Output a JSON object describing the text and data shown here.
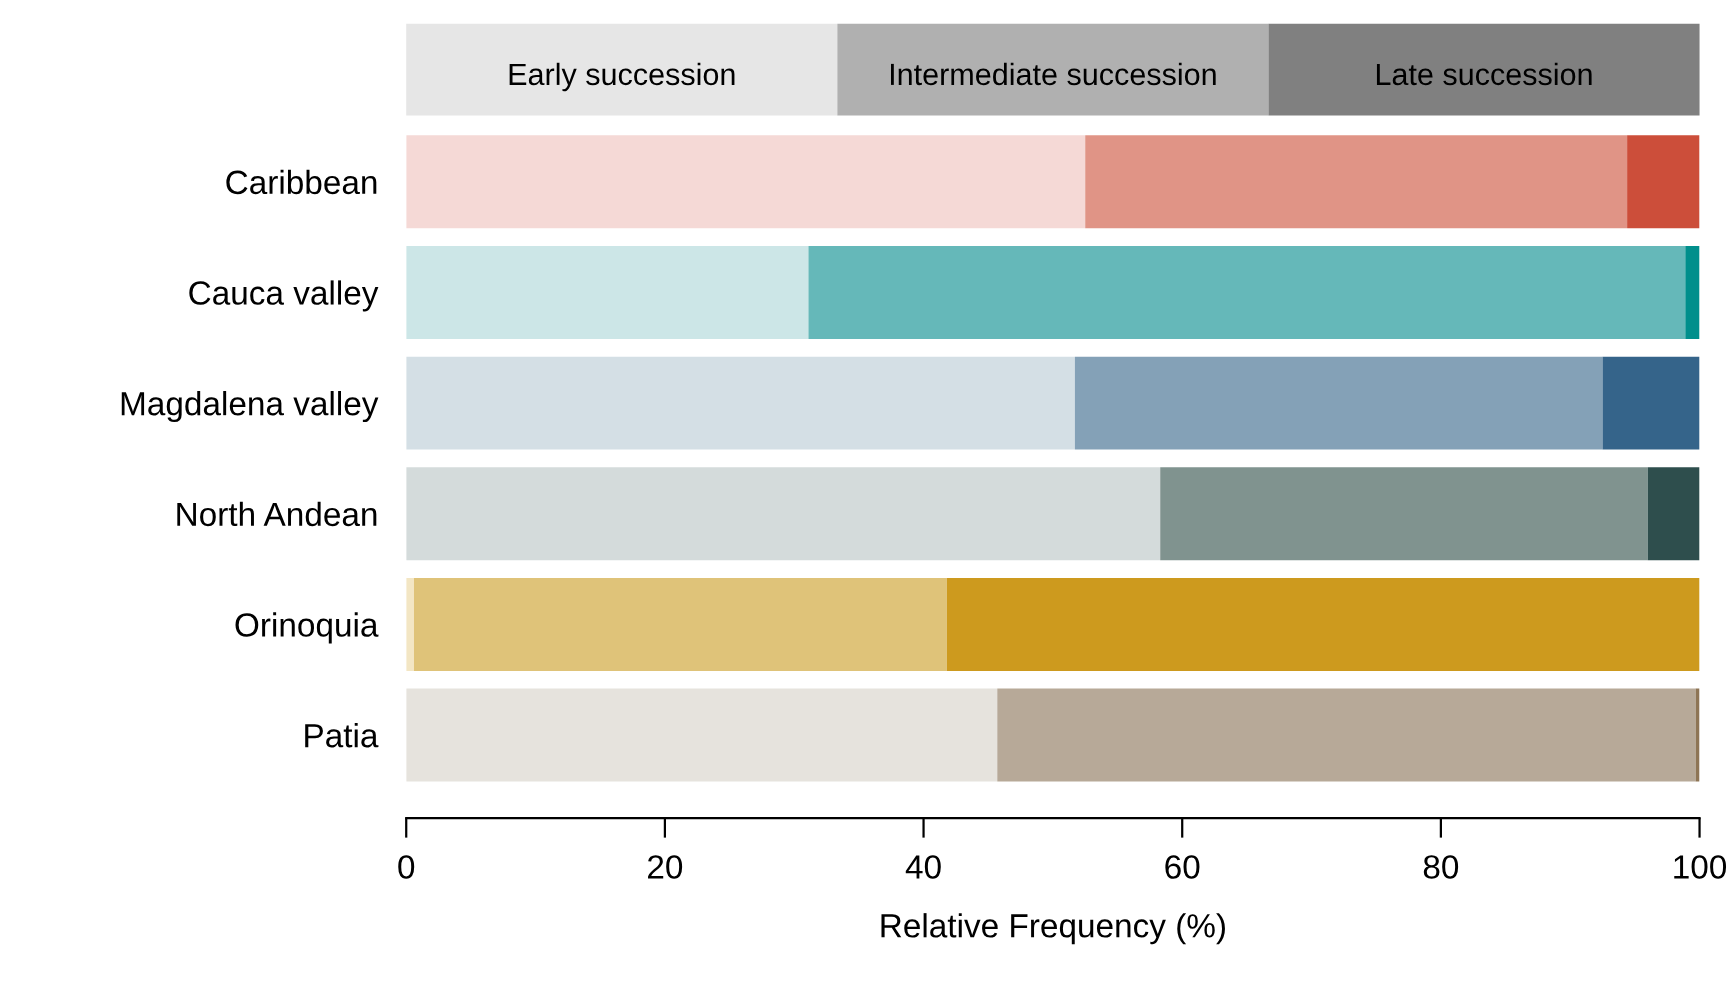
{
  "chart_data": {
    "type": "bar",
    "orientation": "horizontal",
    "stacked": true,
    "xlabel": "Relative Frequency (%)",
    "categories": [
      "Caribbean",
      "Cauca valley",
      "Magdalena valley",
      "North Andean",
      "Orinoquia",
      "Patia"
    ],
    "xlim": [
      0,
      100
    ],
    "xticks": [
      0,
      20,
      40,
      60,
      80,
      100
    ],
    "grid": false,
    "annotations": [
      "Early succession",
      "Intermediate succession",
      "Late succession"
    ],
    "series": [
      {
        "colors": [
          "#f5d9d6",
          "#cce6e7",
          "#d4dfe5",
          "#d4dbdb",
          "#f3e6c4",
          "#e6e3dd"
        ],
        "values": [
          52.5,
          31.1,
          51.7,
          58.3,
          0.6,
          45.7
        ]
      },
      {
        "colors": [
          "#e09486",
          "#65b8b9",
          "#84a1b7",
          "#80938f",
          "#dfc379",
          "#b7a998"
        ],
        "values": [
          41.9,
          67.8,
          40.8,
          37.7,
          41.2,
          54.0
        ]
      },
      {
        "colors": [
          "#cc4e3a",
          "#008f8c",
          "#35648a",
          "#2e4e4d",
          "#cd9a1e",
          "#8e7555"
        ],
        "values": [
          5.6,
          1.1,
          7.5,
          4.0,
          58.2,
          0.3
        ]
      }
    ]
  }
}
